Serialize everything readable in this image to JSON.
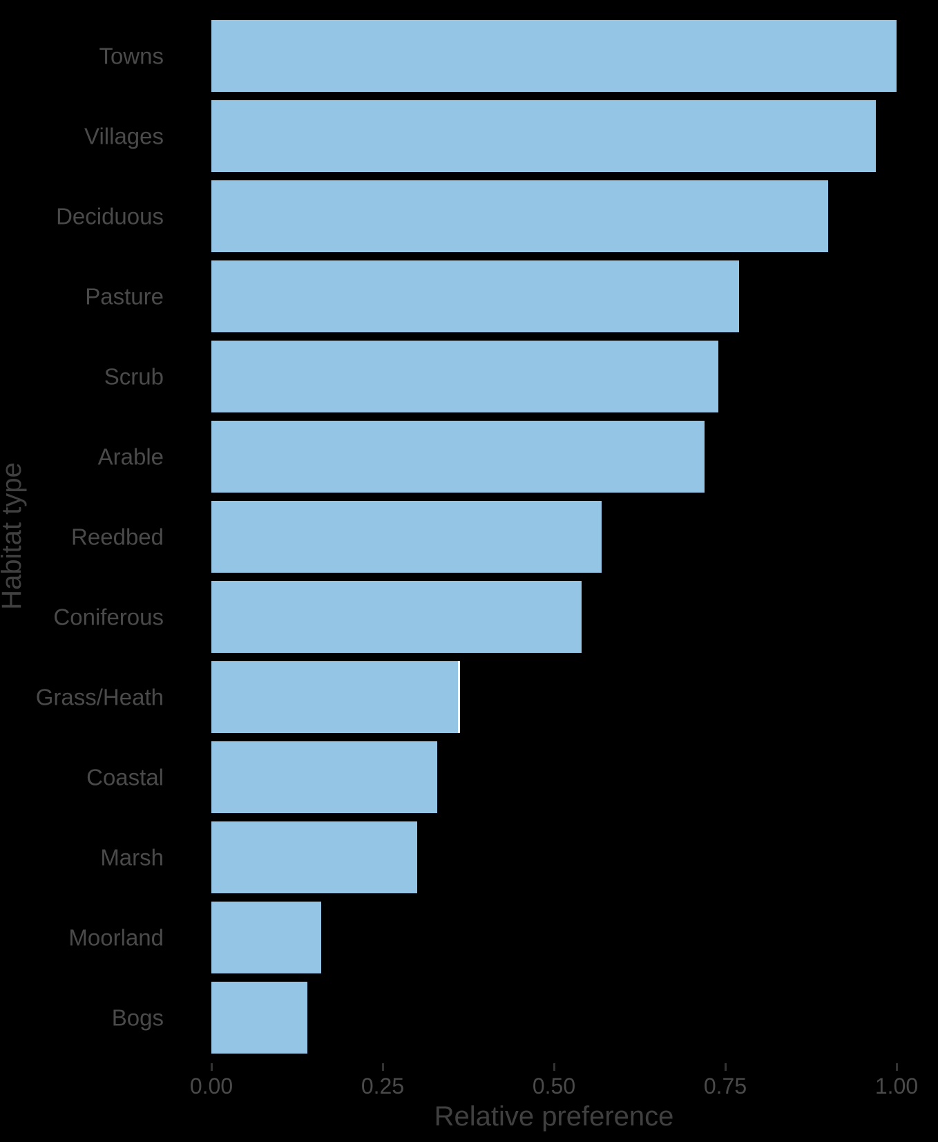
{
  "chart_data": {
    "type": "bar",
    "orientation": "horizontal",
    "categories": [
      "Towns",
      "Villages",
      "Deciduous",
      "Pasture",
      "Scrub",
      "Arable",
      "Reedbed",
      "Coniferous",
      "Grass/Heath",
      "Coastal",
      "Marsh",
      "Moorland",
      "Bogs"
    ],
    "values": [
      1.0,
      0.97,
      0.9,
      0.77,
      0.74,
      0.72,
      0.57,
      0.54,
      0.36,
      0.33,
      0.3,
      0.16,
      0.14
    ],
    "xlabel": "Relative preference",
    "ylabel": "Habitat type",
    "xlim": [
      0,
      1.0
    ],
    "x_tick_labels": [
      "0.00",
      "0.25",
      "0.50",
      "0.75",
      "1.00"
    ],
    "x_tick_values": [
      0,
      0.25,
      0.5,
      0.75,
      1.0
    ],
    "grid": false,
    "legend": "none",
    "colors": {
      "bar_fill": "#95C5E5",
      "background": "#000000",
      "axis_text": "#4A4A4A",
      "axis_title": "#404040",
      "tick_mark": "#333333",
      "artifact_line": "#FFFFFF"
    },
    "artifact": {
      "description_category": "Grass/Heath",
      "at_value": 0.36
    }
  }
}
